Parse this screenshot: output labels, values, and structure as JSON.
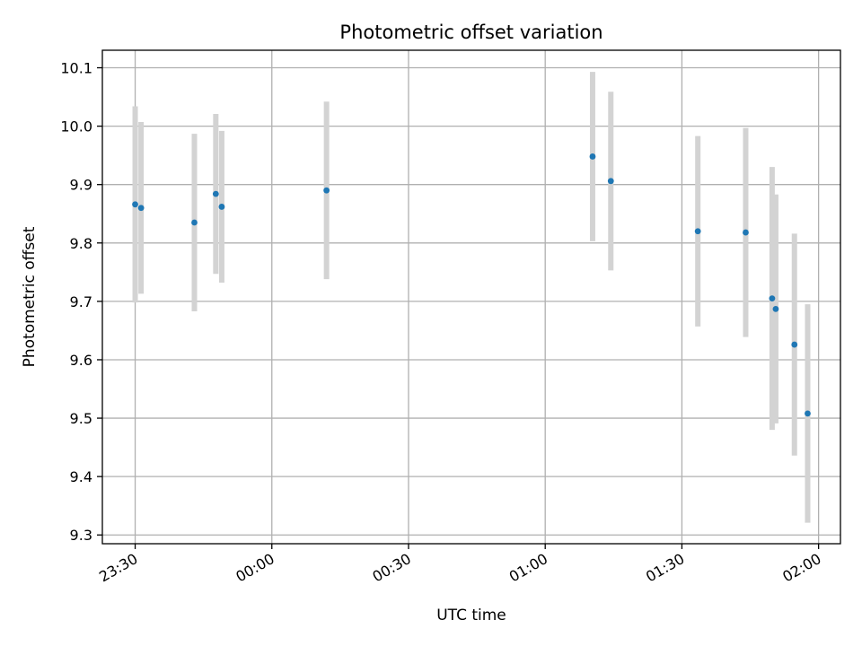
{
  "chart_data": {
    "type": "scatter",
    "title": "Photometric offset variation",
    "xlabel": "UTC time",
    "ylabel": "Photometric offset",
    "x_ticks": [
      "23:30",
      "00:00",
      "00:30",
      "01:00",
      "01:30",
      "02:00"
    ],
    "y_ticks": [
      "9.3",
      "9.4",
      "9.5",
      "9.6",
      "9.7",
      "9.8",
      "9.9",
      "10.0",
      "10.1"
    ],
    "xlim": [
      "23:22.8",
      "02:04.8"
    ],
    "ylim": [
      9.285,
      10.13
    ],
    "grid": true,
    "point_color": "#1f77b4",
    "errorbar_color": "#d3d3d3",
    "series": [
      {
        "points": [
          {
            "x": "23:30.0",
            "y": 9.866,
            "yerr": 0.168
          },
          {
            "x": "23:31.3",
            "y": 9.86,
            "yerr": 0.147
          },
          {
            "x": "23:43.0",
            "y": 9.835,
            "yerr": 0.152
          },
          {
            "x": "23:47.7",
            "y": 9.884,
            "yerr": 0.137
          },
          {
            "x": "23:49.0",
            "y": 9.862,
            "yerr": 0.13
          },
          {
            "x": "00:12.0",
            "y": 9.89,
            "yerr": 0.152
          },
          {
            "x": "01:10.4",
            "y": 9.948,
            "yerr": 0.145
          },
          {
            "x": "01:14.4",
            "y": 9.906,
            "yerr": 0.153
          },
          {
            "x": "01:33.5",
            "y": 9.82,
            "yerr": 0.163
          },
          {
            "x": "01:44.0",
            "y": 9.818,
            "yerr": 0.179
          },
          {
            "x": "01:49.8",
            "y": 9.705,
            "yerr": 0.225
          },
          {
            "x": "01:50.6",
            "y": 9.687,
            "yerr": 0.196
          },
          {
            "x": "01:54.7",
            "y": 9.626,
            "yerr": 0.19
          },
          {
            "x": "01:57.6",
            "y": 9.508,
            "yerr": 0.187
          }
        ]
      }
    ]
  }
}
